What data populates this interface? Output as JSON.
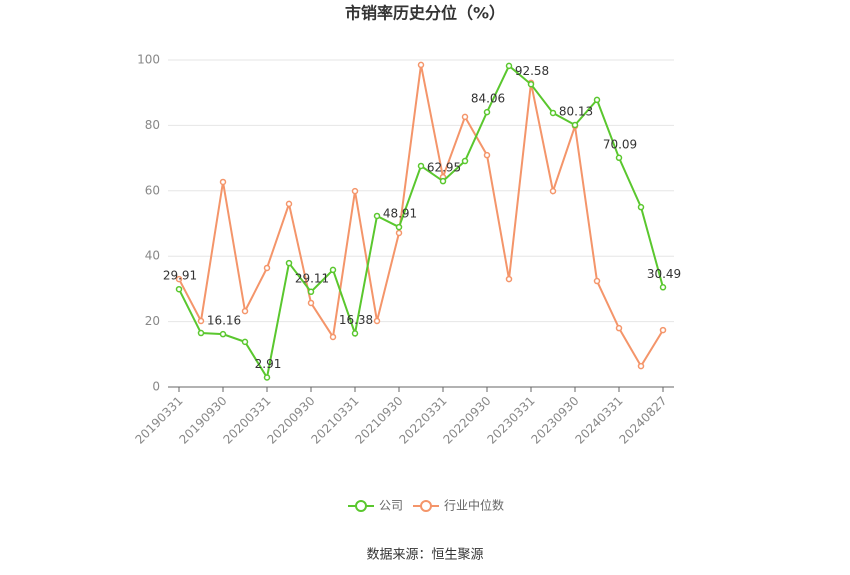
{
  "chart_data": {
    "type": "line",
    "title": "市销率历史分位（%）",
    "categories": [
      "20190331",
      null,
      "20190930",
      null,
      "20200331",
      null,
      "20200930",
      null,
      "20210331",
      null,
      "20210930",
      null,
      "20220331",
      null,
      "20220930",
      null,
      "20230331",
      null,
      "20230930",
      null,
      "20240331",
      null,
      "20240827"
    ],
    "series": [
      {
        "name": "公司",
        "color": "#5ac72e",
        "values": [
          29.91,
          16.5,
          16.16,
          13.8,
          2.91,
          37.9,
          29.11,
          35.8,
          16.38,
          52.3,
          48.91,
          67.6,
          62.95,
          69.1,
          84.06,
          98.2,
          92.58,
          83.8,
          80.13,
          87.8,
          70.09,
          55.0,
          30.49
        ]
      },
      {
        "name": "行业中位数",
        "color": "#f4956a",
        "values": [
          33.0,
          20.2,
          62.7,
          23.2,
          36.4,
          56.0,
          25.7,
          15.3,
          59.9,
          20.2,
          47.1,
          98.5,
          64.2,
          82.6,
          70.9,
          33.0,
          93.0,
          59.9,
          79.8,
          32.4,
          18.0,
          6.4,
          17.4
        ]
      }
    ],
    "ylim": [
      0,
      100
    ],
    "yticks": [
      0,
      20,
      40,
      60,
      80,
      100
    ],
    "grid": true,
    "legend": "bottom",
    "source": "数据来源：恒生聚源"
  }
}
